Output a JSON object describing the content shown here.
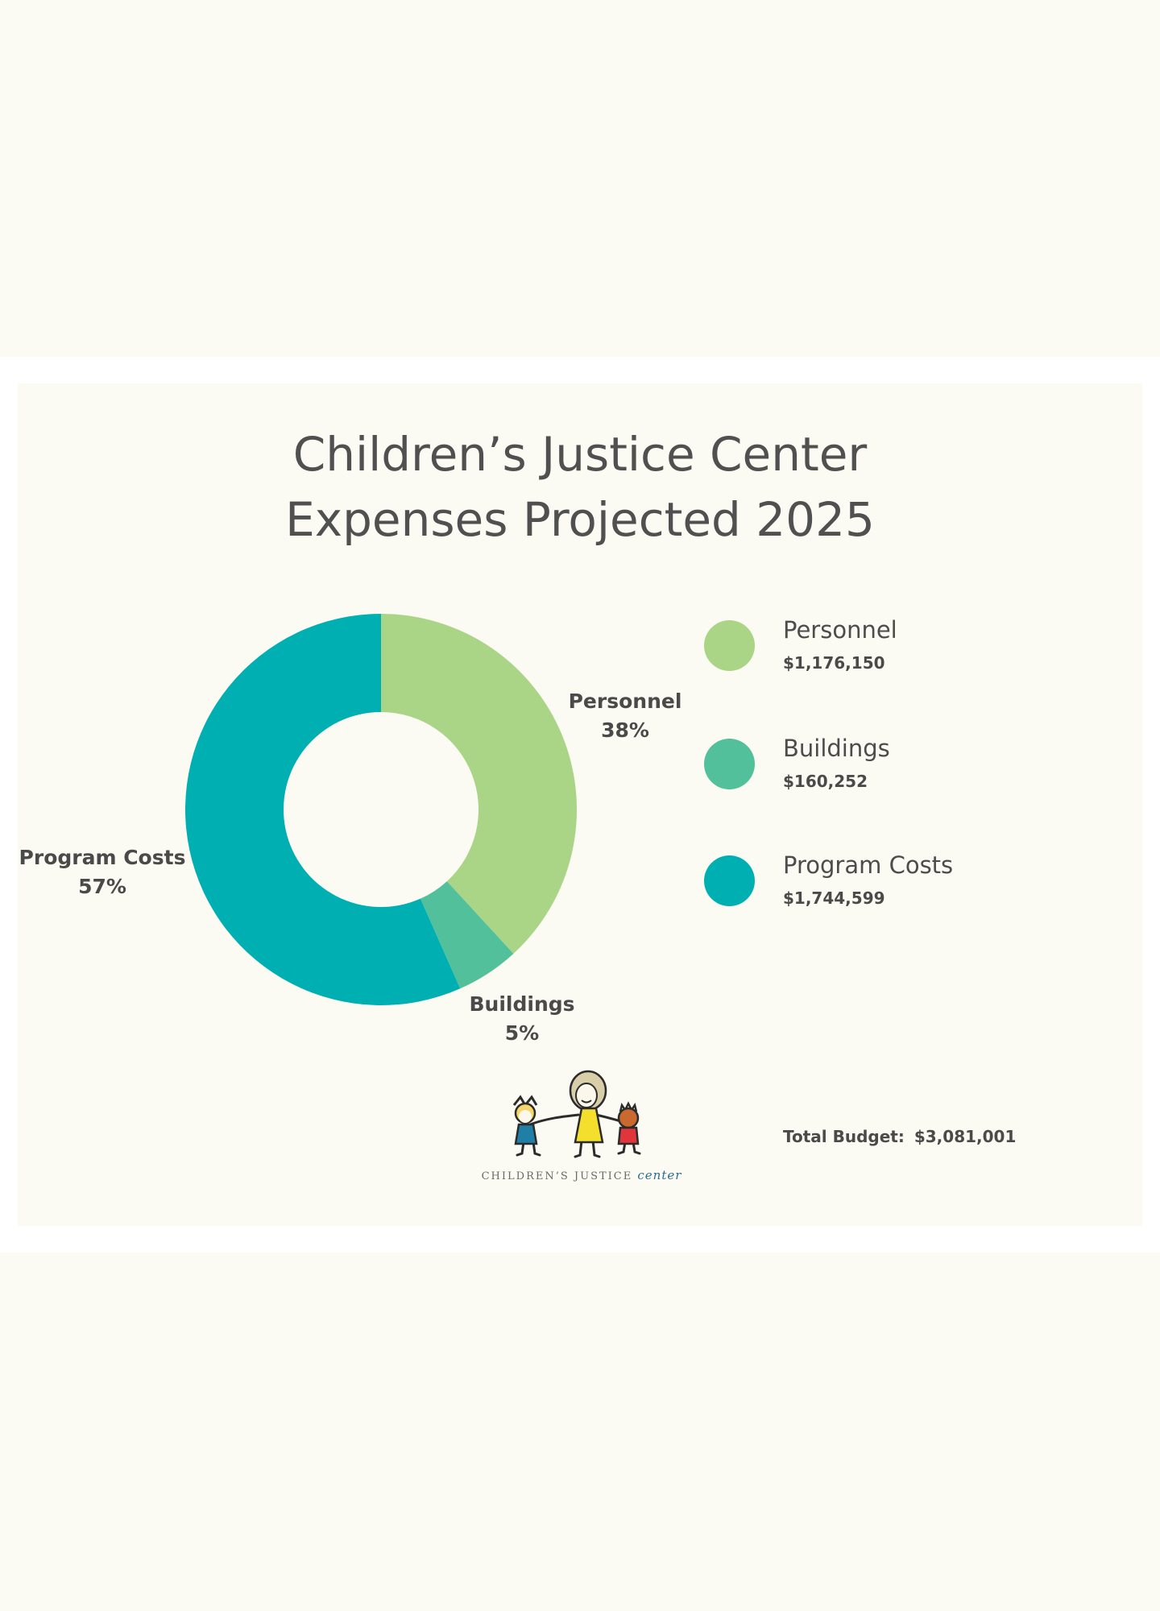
{
  "title": {
    "line1": "Children’s Justice Center",
    "line2": "Expenses Projected 2025"
  },
  "chart_data": {
    "type": "pie",
    "donut": true,
    "title": "Children’s Justice Center Expenses Projected 2025",
    "slices": [
      {
        "name": "Personnel",
        "percent_label": "38%",
        "value": 1176150,
        "value_label": "$1,176,150",
        "color": "#aad587"
      },
      {
        "name": "Buildings",
        "percent_label": "5%",
        "value": 160252,
        "value_label": "$160,252",
        "color": "#52c09b"
      },
      {
        "name": "Program Costs",
        "percent_label": "57%",
        "value": 1744599,
        "value_label": "$1,744,599",
        "color": "#00afb1"
      }
    ],
    "legend_placement": "right",
    "total_label": "Total Budget:",
    "total_value": "$3,081,001"
  },
  "logo": {
    "text": "CHILDREN’S JUSTICE",
    "text_script": "center"
  },
  "colors": {
    "background": "#fcfbf3",
    "title_text": "#505050",
    "label_text": "#4a4a4a"
  }
}
